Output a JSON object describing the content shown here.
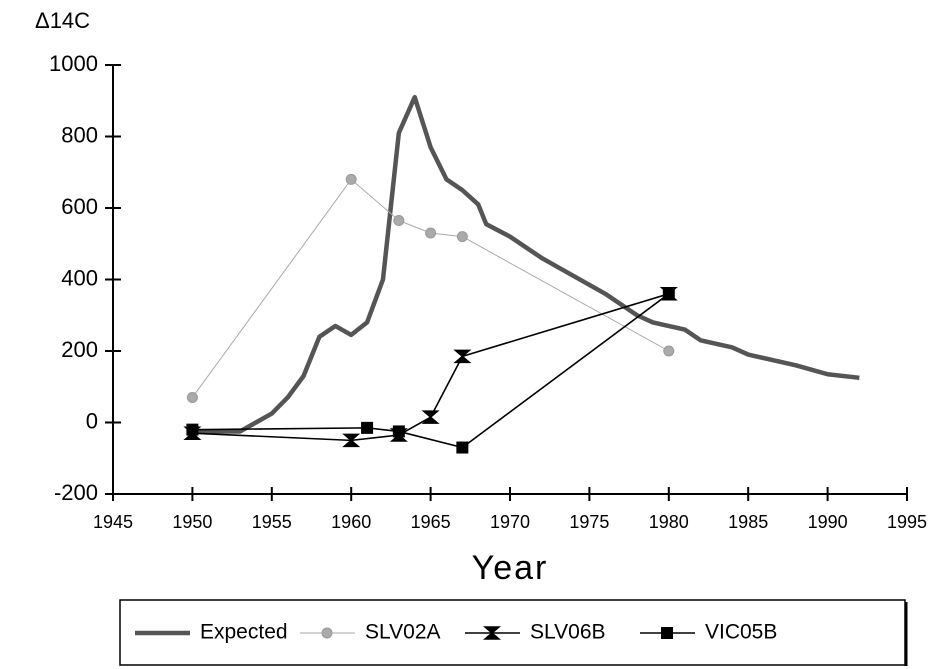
{
  "chart_data": {
    "type": "line",
    "y_label": "Δ14C",
    "x_label": "Year",
    "xlim": [
      1945,
      1995
    ],
    "xticks": [
      1945,
      1950,
      1955,
      1960,
      1965,
      1970,
      1975,
      1980,
      1985,
      1990,
      1995
    ],
    "ylim": [
      -200,
      1000
    ],
    "yticks": [
      -200,
      0,
      200,
      400,
      600,
      800,
      1000
    ],
    "grid": false,
    "legend": "bottom",
    "series": [
      {
        "name": "Expected",
        "color": "#555555",
        "marker": null,
        "x": [
          1950,
          1953,
          1954,
          1955,
          1956,
          1957,
          1958,
          1959,
          1960,
          1961,
          1962,
          1963,
          1964,
          1965,
          1966,
          1967,
          1968,
          1968.5,
          1970,
          1972,
          1974,
          1976,
          1978,
          1979,
          1981,
          1982,
          1984,
          1985,
          1988,
          1990,
          1992
        ],
        "values": [
          -25,
          -25,
          0,
          25,
          70,
          130,
          240,
          270,
          245,
          280,
          400,
          810,
          910,
          770,
          680,
          650,
          610,
          555,
          520,
          460,
          410,
          360,
          300,
          280,
          260,
          230,
          210,
          190,
          160,
          135,
          125
        ]
      },
      {
        "name": "SLV02A",
        "color": "#aaaaaa",
        "marker": "circle",
        "x": [
          1950,
          1960,
          1963,
          1965,
          1967,
          1980
        ],
        "values": [
          70,
          680,
          565,
          530,
          520,
          200
        ]
      },
      {
        "name": "SLV06B",
        "color": "#000000",
        "marker": "bowtie",
        "x": [
          1950,
          1960,
          1963,
          1965,
          1967,
          1980
        ],
        "values": [
          -30,
          -50,
          -35,
          15,
          185,
          360
        ]
      },
      {
        "name": "VIC05B",
        "color": "#000000",
        "marker": "square",
        "x": [
          1950,
          1961,
          1963,
          1967,
          1980
        ],
        "values": [
          -20,
          -15,
          -25,
          -70,
          360
        ]
      }
    ]
  }
}
